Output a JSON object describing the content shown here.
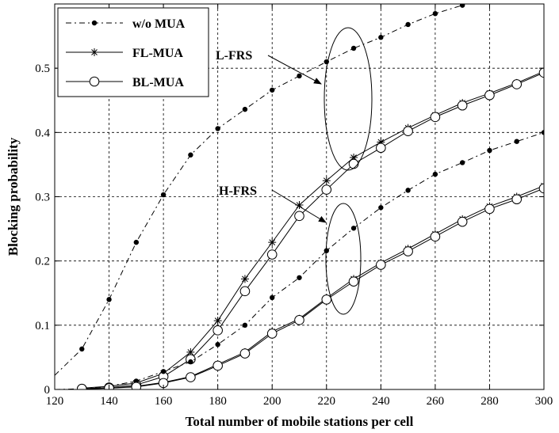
{
  "chart_data": {
    "type": "line",
    "title": "",
    "xlabel": "Total number of mobile stations per cell",
    "ylabel": "Blocking probability",
    "xlim": [
      120,
      300
    ],
    "ylim": [
      0,
      0.6
    ],
    "xticks": [
      120,
      140,
      160,
      180,
      200,
      220,
      240,
      260,
      280,
      300
    ],
    "yticks": [
      0,
      0.1,
      0.2,
      0.3,
      0.4,
      0.5
    ],
    "grid": true,
    "legend_position": "top-left",
    "legend": [
      {
        "name": "w/o MUA",
        "style": "dash-dot",
        "marker": "dot"
      },
      {
        "name": "FL-MUA",
        "style": "solid",
        "marker": "asterisk"
      },
      {
        "name": "BL-MUA",
        "style": "solid",
        "marker": "circle"
      }
    ],
    "groups": [
      {
        "label": "L-FRS",
        "series": [
          {
            "legend": "w/o MUA",
            "marker": "dot",
            "style": "dash-dot",
            "x": [
              120,
              130,
              140,
              150,
              160,
              170,
              180,
              190,
              200,
              210,
              220,
              230,
              240,
              250,
              260,
              270,
              280
            ],
            "y": [
              0.022,
              0.063,
              0.14,
              0.229,
              0.303,
              0.365,
              0.406,
              0.436,
              0.466,
              0.488,
              0.51,
              0.531,
              0.548,
              0.568,
              0.585,
              0.598,
              0.61
            ]
          },
          {
            "legend": "FL-MUA",
            "marker": "asterisk",
            "style": "solid",
            "x": [
              130,
              140,
              150,
              160,
              170,
              180,
              190,
              200,
              210,
              220,
              230,
              240,
              250,
              260,
              270,
              280,
              290,
              300
            ],
            "y": [
              0.002,
              0.005,
              0.01,
              0.025,
              0.058,
              0.107,
              0.172,
              0.229,
              0.287,
              0.325,
              0.361,
              0.385,
              0.407,
              0.427,
              0.446,
              0.461,
              0.477,
              0.495
            ]
          },
          {
            "legend": "BL-MUA",
            "marker": "circle",
            "style": "solid",
            "x": [
              130,
              140,
              150,
              160,
              170,
              180,
              190,
              200,
              210,
              220,
              230,
              240,
              250,
              260,
              270,
              280,
              290,
              300
            ],
            "y": [
              0.001,
              0.003,
              0.007,
              0.02,
              0.047,
              0.092,
              0.153,
              0.21,
              0.27,
              0.311,
              0.351,
              0.376,
              0.402,
              0.424,
              0.442,
              0.458,
              0.475,
              0.493
            ]
          }
        ]
      },
      {
        "label": "H-FRS",
        "series": [
          {
            "legend": "w/o MUA",
            "marker": "dot",
            "style": "dash-dot",
            "x": [
              120,
              130,
              140,
              150,
              160,
              170,
              180,
              190,
              200,
              210,
              220,
              230,
              240,
              250,
              260,
              270,
              280,
              290,
              300
            ],
            "y": [
              0,
              0.001,
              0.005,
              0.013,
              0.028,
              0.043,
              0.07,
              0.1,
              0.143,
              0.174,
              0.216,
              0.251,
              0.283,
              0.31,
              0.335,
              0.353,
              0.372,
              0.386,
              0.4
            ]
          },
          {
            "legend": "FL-MUA",
            "marker": "asterisk",
            "style": "solid",
            "x": [
              130,
              140,
              150,
              160,
              170,
              180,
              190,
              200,
              210,
              220,
              230,
              240,
              250,
              260,
              270,
              280,
              290,
              300
            ],
            "y": [
              0.001,
              0.002,
              0.005,
              0.011,
              0.02,
              0.039,
              0.058,
              0.09,
              0.11,
              0.142,
              0.172,
              0.197,
              0.219,
              0.242,
              0.265,
              0.285,
              0.3,
              0.317
            ]
          },
          {
            "legend": "BL-MUA",
            "marker": "circle",
            "style": "solid",
            "x": [
              130,
              140,
              150,
              160,
              170,
              180,
              190,
              200,
              210,
              220,
              230,
              240,
              250,
              260,
              270,
              280,
              290,
              300
            ],
            "y": [
              0.001,
              0.002,
              0.004,
              0.01,
              0.019,
              0.037,
              0.056,
              0.087,
              0.108,
              0.14,
              0.168,
              0.194,
              0.215,
              0.238,
              0.261,
              0.281,
              0.296,
              0.313
            ]
          }
        ]
      }
    ]
  }
}
